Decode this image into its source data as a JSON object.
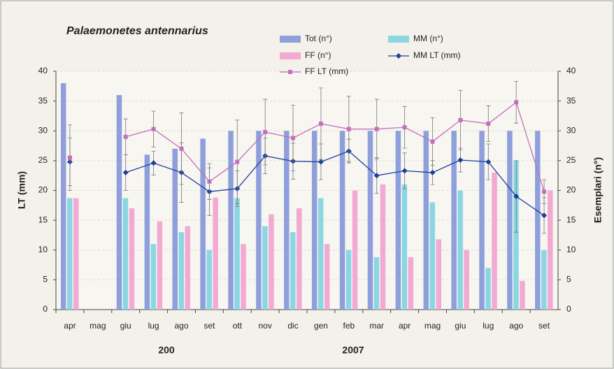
{
  "chart_data": {
    "type": "bar",
    "title": "Palaemonetes antennarius",
    "y_label": "LT (mm)",
    "y2_label": "Esemplari (n°)",
    "categories": [
      "apr",
      "mag",
      "giu",
      "lug",
      "ago",
      "set",
      "ott",
      "nov",
      "dic",
      "gen",
      "feb",
      "mar",
      "apr",
      "mag",
      "giu",
      "lug",
      "ago",
      "set"
    ],
    "year_labels": [
      "200",
      "2007"
    ],
    "ylim": [
      0,
      40
    ],
    "yticks": [
      0,
      5,
      10,
      15,
      20,
      25,
      30,
      35,
      40
    ],
    "y2lim": [
      0,
      40
    ],
    "y2ticks": [
      0,
      5,
      10,
      15,
      20,
      25,
      30,
      35,
      40
    ],
    "grid": true,
    "series": [
      {
        "name": "Tot (n°)",
        "color": "#8e9fdc",
        "axis": "y2",
        "kind": "bar",
        "values": [
          38,
          null,
          36,
          26,
          27,
          28.7,
          30,
          30,
          30,
          30,
          30,
          30,
          30,
          30,
          30,
          30,
          30,
          30
        ]
      },
      {
        "name": "MM (n°)",
        "color": "#8ad6e2",
        "axis": "y2",
        "kind": "bar",
        "values": [
          18.7,
          null,
          18.7,
          11,
          13,
          10,
          18.7,
          14,
          13,
          18.7,
          10,
          8.8,
          21,
          18,
          20,
          7,
          25,
          10
        ]
      },
      {
        "name": "FF (n°)",
        "color": "#f2a9d2",
        "axis": "y2",
        "kind": "bar",
        "values": [
          18.7,
          null,
          17,
          14.8,
          14,
          18.8,
          11,
          16,
          17,
          11,
          20,
          21,
          8.8,
          11.8,
          10,
          23,
          4.8,
          20
        ]
      },
      {
        "name": "MM LT (mm)",
        "color": "#1f3f9c",
        "kind": "line",
        "marker": "diamond",
        "values": [
          24.8,
          null,
          23,
          24.6,
          23,
          19.8,
          20.3,
          25.8,
          24.9,
          24.8,
          26.6,
          22.5,
          23.3,
          23,
          25.1,
          24.8,
          19,
          15.8
        ],
        "errors": [
          4,
          null,
          3,
          2,
          5,
          4,
          3,
          3,
          3,
          3,
          2,
          3,
          3,
          2,
          2,
          3,
          6,
          3
        ]
      },
      {
        "name": "FF LT (mm)",
        "color": "#c46fbc",
        "kind": "line",
        "marker": "square",
        "values": [
          25.5,
          null,
          29,
          30.3,
          27,
          21.5,
          24.8,
          29.8,
          28.8,
          31.2,
          30.3,
          30.3,
          30.6,
          28.2,
          31.8,
          31.2,
          34.8,
          19.8
        ],
        "errors": [
          5.5,
          null,
          3,
          3,
          6,
          3,
          7,
          5.5,
          5.5,
          6,
          5.5,
          5,
          3.5,
          4,
          5,
          3,
          3.5,
          2
        ]
      }
    ]
  }
}
